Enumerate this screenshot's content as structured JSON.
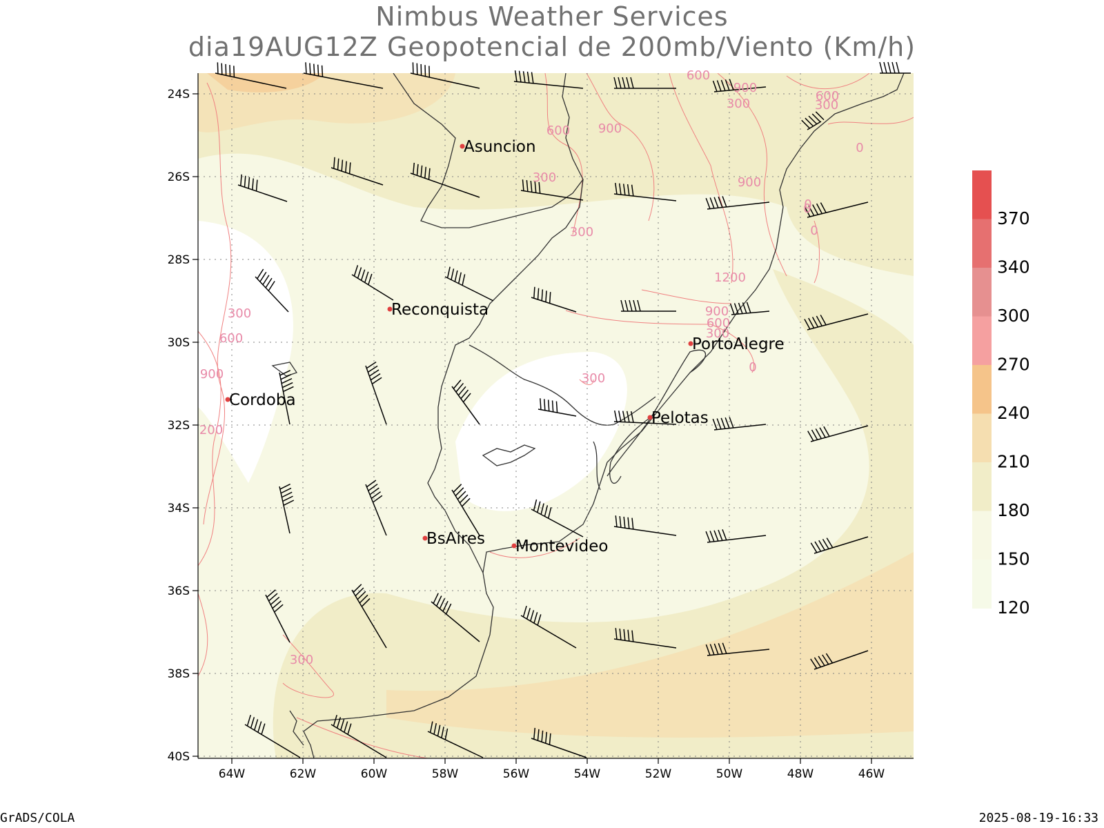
{
  "header": {
    "title_line1": "Nimbus Weather Services",
    "title_line2": "dia19AUG12Z Geopotencial de 200mb/Viento (Km/h)"
  },
  "map": {
    "lat_ticks": [
      "24S",
      "26S",
      "28S",
      "30S",
      "32S",
      "34S",
      "36S",
      "38S",
      "40S"
    ],
    "lon_ticks": [
      "64W",
      "62W",
      "60W",
      "58W",
      "56W",
      "54W",
      "52W",
      "50W",
      "48W",
      "46W"
    ],
    "cities": [
      "Asuncion",
      "Reconquista",
      "PortoAlegre",
      "Cordoba",
      "Pelotas",
      "BsAires",
      "Montevideo"
    ],
    "contour_labels": [
      "600",
      "900",
      "300",
      "600",
      "900",
      "600",
      "300",
      "0",
      "300",
      "300",
      "900",
      "0",
      "0",
      "1200",
      "900",
      "600",
      "300",
      "0",
      "300",
      "600",
      "900",
      "200",
      "300",
      "0",
      "300"
    ]
  },
  "legend": {
    "labels": [
      "370",
      "340",
      "300",
      "270",
      "240",
      "210",
      "180",
      "150",
      "120"
    ],
    "colors": [
      "#e55050",
      "#e67070",
      "#e69090",
      "#f5a0a0",
      "#f5c48a",
      "#f5deb0",
      "#f1edc8",
      "#f7f8e4",
      "#f6fae8"
    ]
  },
  "footer": {
    "left": "GrADS/COLA",
    "right": "2025-08-19-16:33"
  }
}
